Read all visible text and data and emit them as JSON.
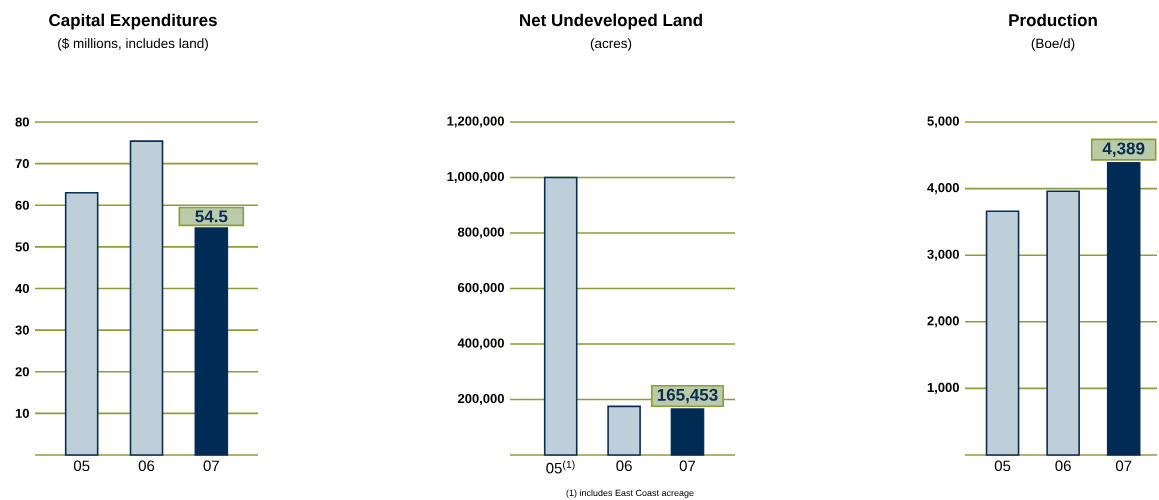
{
  "chart_data": [
    {
      "type": "bar",
      "title": "Capital Expenditures",
      "subtitle": "($ millions, includes land)",
      "categories": [
        "05",
        "06",
        "07"
      ],
      "values": [
        63,
        75.4,
        54.5
      ],
      "colors": [
        "#bfcfd9",
        "#bfcfd9",
        "#002b54"
      ],
      "value_labels": [
        null,
        null,
        "54.5"
      ],
      "ylim": [
        0,
        80
      ],
      "yticks": [
        {
          "value": 0,
          "label": null
        },
        10,
        20,
        30,
        40,
        50,
        60,
        70,
        80
      ],
      "grid": "y"
    },
    {
      "type": "bar",
      "title": "Net Undeveloped Land",
      "subtitle": "(acres)",
      "categories": [
        "05$^{(1)}$",
        "06",
        "07"
      ],
      "values": [
        1000000,
        175000,
        165453
      ],
      "colors": [
        "#bfcfd9",
        "#bfcfd9",
        "#002b54"
      ],
      "value_labels": [
        null,
        null,
        "165,453"
      ],
      "ylim": [
        0,
        1200000
      ],
      "yticks": [
        {
          "value": 0,
          "label": null
        },
        {
          "value": 200000,
          "label": "200,000"
        },
        {
          "value": 400000,
          "label": "400,000"
        },
        {
          "value": 600000,
          "label": "600,000"
        },
        {
          "value": 800000,
          "label": "800,000"
        },
        {
          "value": 1000000,
          "label": "1,000,000"
        },
        {
          "value": 1200000,
          "label": "1,200,000"
        }
      ],
      "grid": "y",
      "annotations": [
        "(1) includes East Coast acreage"
      ]
    },
    {
      "type": "bar",
      "title": "Production",
      "subtitle": "(Boe/d)",
      "categories": [
        "05",
        "06",
        "07"
      ],
      "values": [
        3660,
        3960,
        4389
      ],
      "colors": [
        "#bfcfd9",
        "#bfcfd9",
        "#002b54"
      ],
      "value_labels": [
        null,
        null,
        "4,389"
      ],
      "ylim": [
        0,
        5000
      ],
      "yticks": [
        {
          "value": 0,
          "label": null
        },
        {
          "value": 1000,
          "label": "1,000"
        },
        {
          "value": 2000,
          "label": "2,000"
        },
        {
          "value": 3000,
          "label": "3,000"
        },
        {
          "value": 4000,
          "label": "4,000"
        },
        {
          "value": 5000,
          "label": "5,000"
        }
      ],
      "grid": "y"
    }
  ]
}
